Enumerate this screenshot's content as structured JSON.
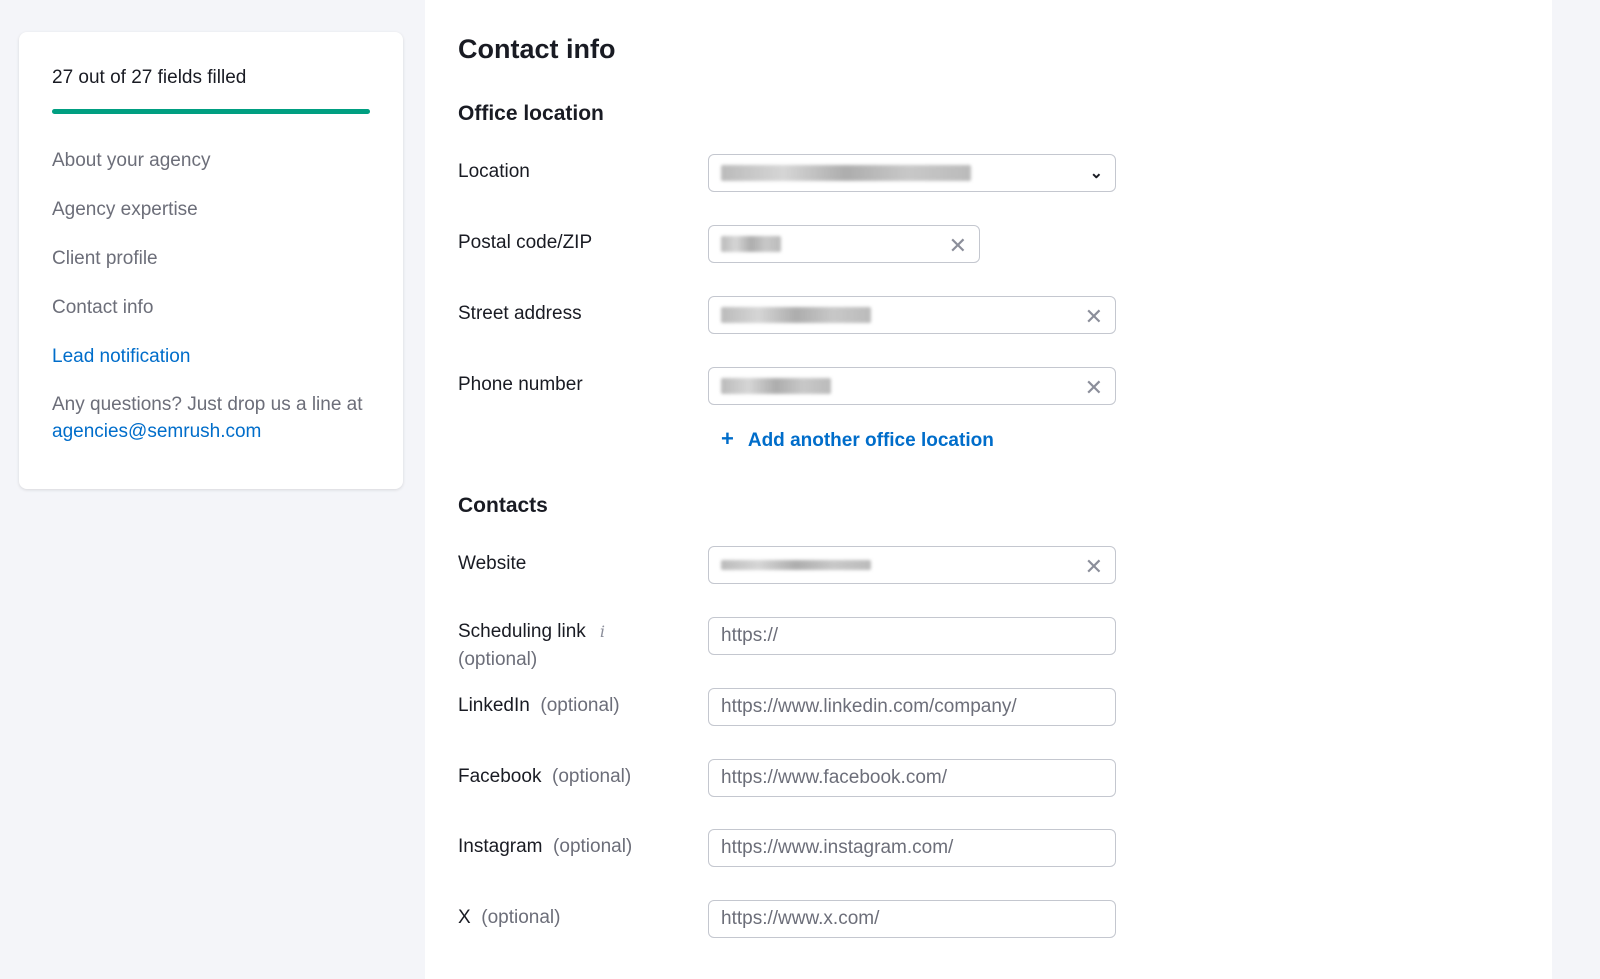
{
  "sidebar": {
    "progress_label": "27 out of 27 fields filled",
    "progress_percent": 100,
    "progress_color": "#009f81",
    "items": [
      {
        "label": "About your agency"
      },
      {
        "label": "Agency expertise"
      },
      {
        "label": "Client profile"
      },
      {
        "label": "Contact info"
      },
      {
        "label": "Lead notification",
        "active": true
      }
    ],
    "help_text": "Any questions? Just drop us a line at",
    "help_email": "agencies@semrush.com"
  },
  "main": {
    "title": "Contact info",
    "office": {
      "heading": "Office location",
      "location_label": "Location",
      "postal_label": "Postal code/ZIP",
      "street_label": "Street address",
      "phone_label": "Phone number",
      "add_label": "Add another office location"
    },
    "contacts": {
      "heading": "Contacts",
      "website_label": "Website",
      "scheduling_label": "Scheduling link",
      "scheduling_optional": "(optional)",
      "scheduling_placeholder": "https://",
      "linkedin_label": "LinkedIn",
      "linkedin_placeholder": "https://www.linkedin.com/company/",
      "facebook_label": "Facebook",
      "facebook_placeholder": "https://www.facebook.com/",
      "instagram_label": "Instagram",
      "instagram_placeholder": "https://www.instagram.com/",
      "x_label": "X",
      "x_placeholder": "https://www.x.com/",
      "optional": "(optional)"
    }
  }
}
